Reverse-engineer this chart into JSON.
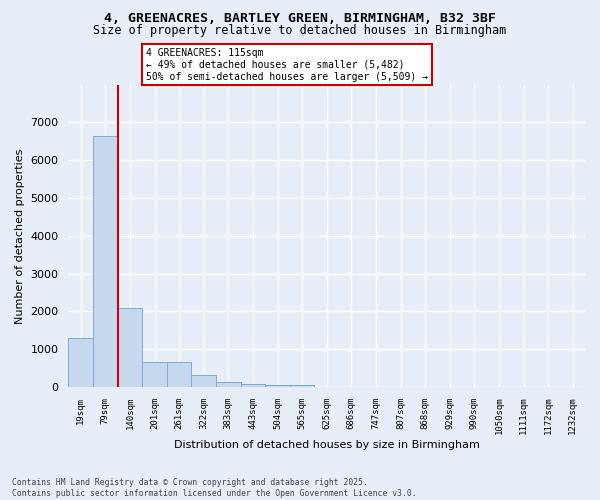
{
  "title_line1": "4, GREENACRES, BARTLEY GREEN, BIRMINGHAM, B32 3BF",
  "title_line2": "Size of property relative to detached houses in Birmingham",
  "xlabel": "Distribution of detached houses by size in Birmingham",
  "ylabel": "Number of detached properties",
  "footer_line1": "Contains HM Land Registry data © Crown copyright and database right 2025.",
  "footer_line2": "Contains public sector information licensed under the Open Government Licence v3.0.",
  "annotation_line1": "4 GREENACRES: 115sqm",
  "annotation_line2": "← 49% of detached houses are smaller (5,482)",
  "annotation_line3": "50% of semi-detached houses are larger (5,509) →",
  "bar_color": "#c5d8ee",
  "bar_edge_color": "#7aaed6",
  "vline_color": "#cc0000",
  "background_color": "#e8eef8",
  "grid_color": "#ffffff",
  "categories": [
    "19sqm",
    "79sqm",
    "140sqm",
    "201sqm",
    "261sqm",
    "322sqm",
    "383sqm",
    "443sqm",
    "504sqm",
    "565sqm",
    "625sqm",
    "686sqm",
    "747sqm",
    "807sqm",
    "868sqm",
    "929sqm",
    "990sqm",
    "1050sqm",
    "1111sqm",
    "1172sqm",
    "1232sqm"
  ],
  "values": [
    1300,
    6650,
    2100,
    660,
    660,
    310,
    140,
    90,
    55,
    55,
    5,
    2,
    1,
    1,
    1,
    0,
    0,
    0,
    0,
    0,
    0
  ],
  "vline_position": 1.5,
  "ylim": [
    0,
    8000
  ],
  "yticks": [
    0,
    1000,
    2000,
    3000,
    4000,
    5000,
    6000,
    7000
  ]
}
